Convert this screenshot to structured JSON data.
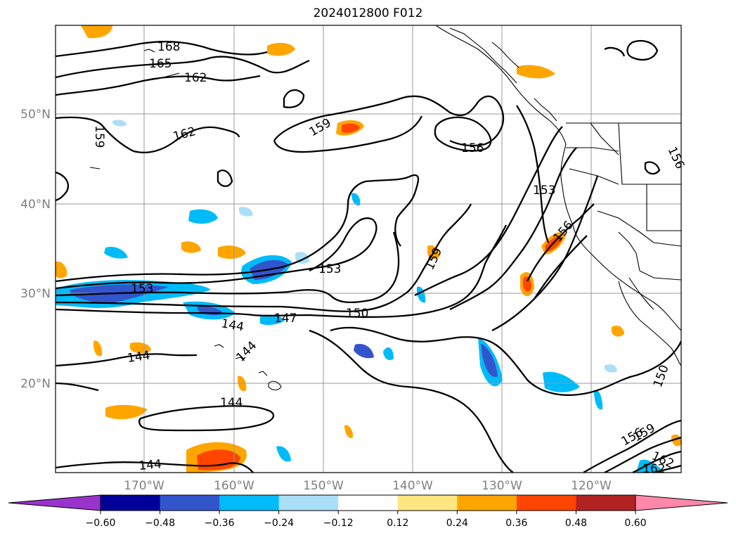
{
  "title": "2024012800 F012",
  "map": {
    "lat_labels": [
      "50°N",
      "40°N",
      "30°N",
      "20°N"
    ],
    "lon_labels": [
      "170°W",
      "160°W",
      "150°W",
      "140°W",
      "130°W",
      "120°W"
    ],
    "contour_labels": [
      "168",
      "165",
      "162",
      "162",
      "159",
      "159",
      "156",
      "153",
      "153",
      "153",
      "156",
      "159",
      "150",
      "147",
      "144",
      "144",
      "144",
      "144",
      "144",
      "150",
      "156",
      "159",
      "162",
      "162",
      "156"
    ]
  },
  "colorbar": {
    "ticks": [
      "−0.60",
      "−0.48",
      "−0.36",
      "−0.24",
      "−0.12",
      "0.12",
      "0.24",
      "0.36",
      "0.48",
      "0.60"
    ],
    "colors": [
      "#9933cc",
      "#000099",
      "#3355cc",
      "#00bbf9",
      "#aadff7",
      "#ffffff",
      "#ffe680",
      "#ffa500",
      "#ff4500",
      "#b22222",
      "#ff88aa"
    ]
  }
}
